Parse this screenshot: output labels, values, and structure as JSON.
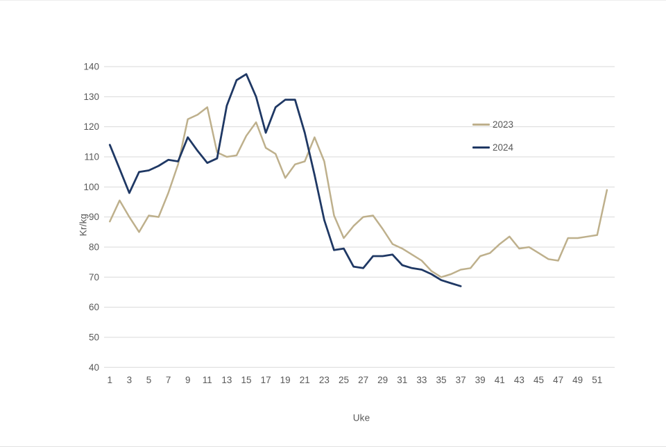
{
  "chart": {
    "y_axis_title": "Kr/kg",
    "x_axis_title": "Uke",
    "legend": {
      "items": [
        {
          "label": "2023",
          "color": "#beb08c"
        },
        {
          "label": "2024",
          "color": "#1f3864"
        }
      ]
    },
    "colors": {
      "gridline": "#d9d9d9",
      "tick_text": "#595959",
      "series_2023": "#beb08c",
      "series_2024": "#1f3864"
    }
  },
  "chart_data": {
    "type": "line",
    "title": "",
    "xlabel": "Uke",
    "ylabel": "Kr/kg",
    "ylim": [
      40,
      140
    ],
    "xlim": [
      1,
      52
    ],
    "grid": true,
    "legend_position": "right-inside",
    "y_ticks": [
      40,
      50,
      60,
      70,
      80,
      90,
      100,
      110,
      120,
      130,
      140
    ],
    "x_ticks": [
      1,
      3,
      5,
      7,
      9,
      11,
      13,
      15,
      17,
      19,
      21,
      23,
      25,
      27,
      29,
      31,
      33,
      35,
      37,
      39,
      41,
      43,
      45,
      47,
      49,
      51
    ],
    "series": [
      {
        "name": "2023",
        "color": "#beb08c",
        "stroke_width": 2.5,
        "x": [
          1,
          2,
          3,
          4,
          5,
          6,
          7,
          8,
          9,
          10,
          11,
          12,
          13,
          14,
          15,
          16,
          17,
          18,
          19,
          20,
          21,
          22,
          23,
          24,
          25,
          26,
          27,
          28,
          29,
          30,
          31,
          32,
          33,
          34,
          35,
          36,
          37,
          38,
          39,
          40,
          41,
          42,
          43,
          44,
          45,
          46,
          47,
          48,
          49,
          50,
          51,
          52
        ],
        "values": [
          88.5,
          95.5,
          90,
          85,
          90.5,
          90,
          98,
          107.5,
          122.5,
          124,
          126.5,
          111.5,
          110,
          110.5,
          117,
          121.5,
          113,
          111,
          103,
          107.5,
          108.5,
          116.5,
          108.5,
          90.5,
          83,
          87,
          90,
          90.5,
          86,
          81,
          79.5,
          77.5,
          75.5,
          72,
          70,
          71,
          72.5,
          73,
          77,
          78,
          81,
          83.5,
          79.5,
          80,
          78,
          76,
          75.5,
          83,
          83,
          83.5,
          84,
          99
        ]
      },
      {
        "name": "2024",
        "color": "#1f3864",
        "stroke_width": 2.8,
        "x": [
          1,
          2,
          3,
          4,
          5,
          6,
          7,
          8,
          9,
          10,
          11,
          12,
          13,
          14,
          15,
          16,
          17,
          18,
          19,
          20,
          21,
          22,
          23,
          24,
          25,
          26,
          27,
          28,
          29,
          30,
          31,
          32,
          33,
          34,
          35,
          36,
          37
        ],
        "values": [
          114,
          106,
          98,
          105,
          105.5,
          107,
          109,
          108.5,
          116.5,
          112,
          108,
          109.5,
          127,
          135.5,
          137.5,
          130,
          118,
          126.5,
          129,
          129,
          118,
          104,
          89,
          79,
          79.5,
          73.5,
          73,
          77,
          77,
          77.5,
          74,
          73,
          72.5,
          71,
          69,
          68,
          67
        ]
      }
    ]
  }
}
